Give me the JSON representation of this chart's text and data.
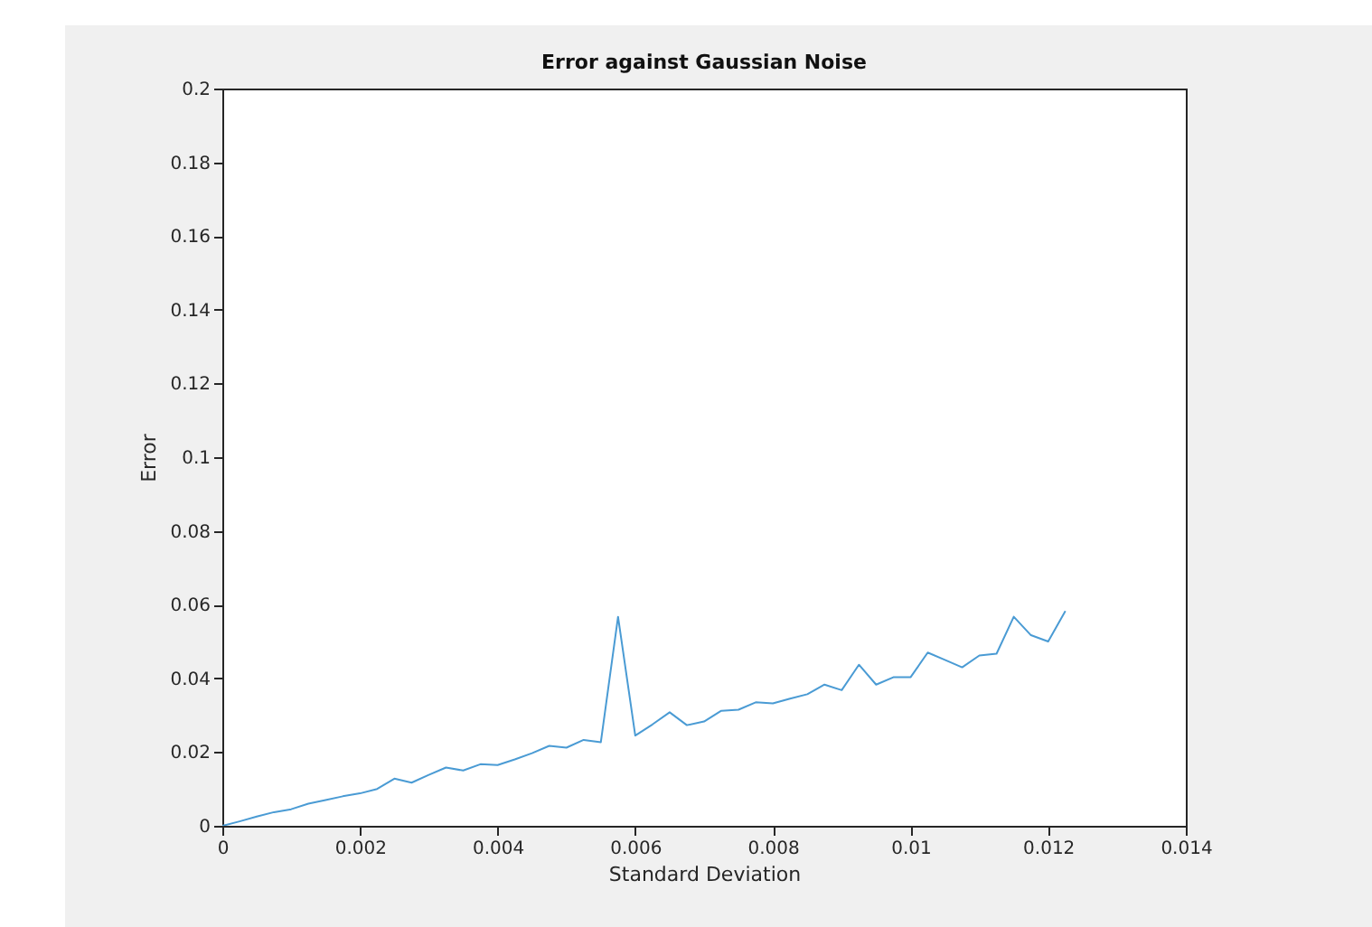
{
  "chart_data": {
    "type": "line",
    "title": "Error against Gaussian Noise",
    "xlabel": "Standard Deviation",
    "ylabel": "Error",
    "x": [
      0,
      0.00025,
      0.0005,
      0.00075,
      0.001,
      0.00125,
      0.0015,
      0.00175,
      0.002,
      0.00225,
      0.0025,
      0.00275,
      0.003,
      0.00325,
      0.0035,
      0.00375,
      0.004,
      0.00425,
      0.0045,
      0.00475,
      0.005,
      0.00525,
      0.0055,
      0.00575,
      0.006,
      0.00625,
      0.0065,
      0.00675,
      0.007,
      0.00725,
      0.0075,
      0.00775,
      0.008,
      0.00825,
      0.0085,
      0.00875,
      0.009,
      0.00925,
      0.0095,
      0.00975,
      0.01,
      0.01025,
      0.0105,
      0.01075,
      0.011,
      0.01125,
      0.0115,
      0.01175,
      0.012,
      0.01225
    ],
    "series": [
      {
        "color": "#4a9bd4",
        "values": [
          0,
          0.0012,
          0.0025,
          0.0037,
          0.0045,
          0.006,
          0.007,
          0.008,
          0.0088,
          0.01,
          0.0128,
          0.0117,
          0.0138,
          0.0158,
          0.015,
          0.0167,
          0.0165,
          0.018,
          0.0197,
          0.0217,
          0.0212,
          0.0233,
          0.0227,
          0.0567,
          0.0245,
          0.0275,
          0.0308,
          0.0273,
          0.0283,
          0.0312,
          0.0315,
          0.0335,
          0.0332,
          0.0345,
          0.0357,
          0.0383,
          0.0368,
          0.0437,
          0.0383,
          0.0403,
          0.0403,
          0.047,
          0.045,
          0.043,
          0.0462,
          0.0467,
          0.0567,
          0.0517,
          0.05,
          0.0583
        ]
      }
    ],
    "xlim": [
      0,
      0.014
    ],
    "xticks": [
      0,
      0.002,
      0.004,
      0.006,
      0.008,
      0.01,
      0.012,
      0.014
    ],
    "ylim": [
      0,
      0.2
    ],
    "yticks": [
      0,
      0.02,
      0.04,
      0.06,
      0.08,
      0.1,
      0.12,
      0.14,
      0.16,
      0.18,
      0.2
    ],
    "grid": false,
    "legend": false,
    "marker": "none",
    "line_style": "solid"
  }
}
